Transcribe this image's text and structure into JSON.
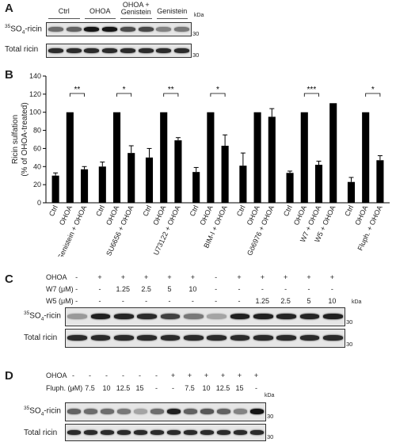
{
  "panel_a": {
    "letter": "A",
    "headers": [
      "Ctrl",
      "OHOA",
      "OHOA +\nGenistein",
      "Genistein"
    ],
    "kda": "kDa",
    "row1": {
      "prefix": "35",
      "name": "SO",
      "sub": "4",
      "suffix": "-ricin",
      "mw": "30"
    },
    "row2": {
      "label": "Total ricin",
      "mw": "30"
    },
    "sulfation_intensity": [
      0.55,
      0.6,
      0.95,
      0.95,
      0.7,
      0.72,
      0.45,
      0.5
    ],
    "total_intensity": [
      0.85,
      0.85,
      0.85,
      0.85,
      0.85,
      0.85,
      0.85,
      0.85
    ]
  },
  "chart_data": {
    "type": "bar",
    "letter": "B",
    "ylabel_line1": "Ricin sulfation",
    "ylabel_line2": "(% of OHOA-treated)",
    "ylim": [
      0,
      140
    ],
    "yticks": [
      0,
      20,
      40,
      60,
      80,
      100,
      120,
      140
    ],
    "categories": [
      "Ctrl",
      "OHOA",
      "Genistein + OHOA",
      "Ctrl",
      "OHOA",
      "SU6656 + OHOA",
      "Ctrl",
      "OHOA",
      "U73122 + OHOA",
      "Ctrl",
      "OHOA",
      "BIM-I + OHOA",
      "Ctrl",
      "OHOA",
      "Gö6976 + OHOA",
      "Ctrl",
      "OHOA",
      "W7 + OHOA",
      "W5 + OHOA",
      "Ctrl",
      "OHOA",
      "Fluph. + OHOA"
    ],
    "values": [
      30,
      100,
      37,
      40,
      100,
      55,
      50,
      100,
      69,
      34,
      100,
      63,
      41,
      100,
      95,
      33,
      100,
      42,
      110,
      23,
      100,
      47
    ],
    "errors": [
      3,
      0,
      3,
      5,
      0,
      8,
      10,
      0,
      3,
      5,
      0,
      12,
      14,
      0,
      9,
      2,
      0,
      4,
      0,
      5,
      0,
      5
    ],
    "gap_after": [
      2,
      5,
      8,
      11,
      14,
      18
    ],
    "significance": [
      {
        "from": 1,
        "to": 2,
        "label": "**"
      },
      {
        "from": 4,
        "to": 5,
        "label": "*"
      },
      {
        "from": 7,
        "to": 8,
        "label": "**"
      },
      {
        "from": 10,
        "to": 11,
        "label": "*"
      },
      {
        "from": 16,
        "to": 17,
        "label": "***"
      },
      {
        "from": 20,
        "to": 21,
        "label": "*"
      }
    ],
    "bar_color": "#000000"
  },
  "panel_c": {
    "letter": "C",
    "rows": [
      {
        "label": "OHOA",
        "values": [
          "-",
          "+",
          "+",
          "+",
          "+",
          "+",
          "-",
          "+",
          "+",
          "+",
          "+",
          "+"
        ]
      },
      {
        "label": "W7 (μM)",
        "values": [
          "-",
          "-",
          "1.25",
          "2.5",
          "5",
          "10",
          "-",
          "-",
          "-",
          "-",
          "-",
          "-"
        ]
      },
      {
        "label": "W5 (μM)",
        "values": [
          "-",
          "-",
          "-",
          "-",
          "-",
          "-",
          "-",
          "-",
          "1.25",
          "2.5",
          "5",
          "10"
        ]
      }
    ],
    "kda": "kDa",
    "row1": {
      "prefix": "35",
      "name": "SO",
      "sub": "4",
      "suffix": "-ricin",
      "mw": "30"
    },
    "row2": {
      "label": "Total ricin",
      "mw": "30"
    },
    "sulfation_intensity": [
      0.35,
      0.9,
      0.88,
      0.85,
      0.75,
      0.5,
      0.3,
      0.9,
      0.9,
      0.88,
      0.88,
      0.9
    ],
    "total_intensity": [
      0.85,
      0.85,
      0.85,
      0.85,
      0.85,
      0.85,
      0.85,
      0.85,
      0.85,
      0.85,
      0.85,
      0.85
    ]
  },
  "panel_d": {
    "letter": "D",
    "rows": [
      {
        "label": "OHOA",
        "values": [
          "-",
          "-",
          "-",
          "-",
          "-",
          "-",
          "+",
          "+",
          "+",
          "+",
          "+",
          "+"
        ]
      },
      {
        "label": "Fluph. (μM)",
        "values": [
          "-",
          "7.5",
          "10",
          "12.5",
          "15",
          "-",
          "-",
          "7.5",
          "10",
          "12.5",
          "15",
          "-"
        ]
      }
    ],
    "kda": "kDa",
    "row1": {
      "prefix": "35",
      "name": "SO",
      "sub": "4",
      "suffix": "-ricin",
      "mw": "30"
    },
    "row2": {
      "label": "Total ricin",
      "mw": "30"
    },
    "sulfation_intensity": [
      0.6,
      0.55,
      0.55,
      0.5,
      0.3,
      0.55,
      0.9,
      0.6,
      0.65,
      0.6,
      0.45,
      0.95
    ],
    "total_intensity": [
      0.85,
      0.85,
      0.85,
      0.85,
      0.85,
      0.85,
      0.85,
      0.85,
      0.85,
      0.85,
      0.85,
      0.85
    ]
  }
}
